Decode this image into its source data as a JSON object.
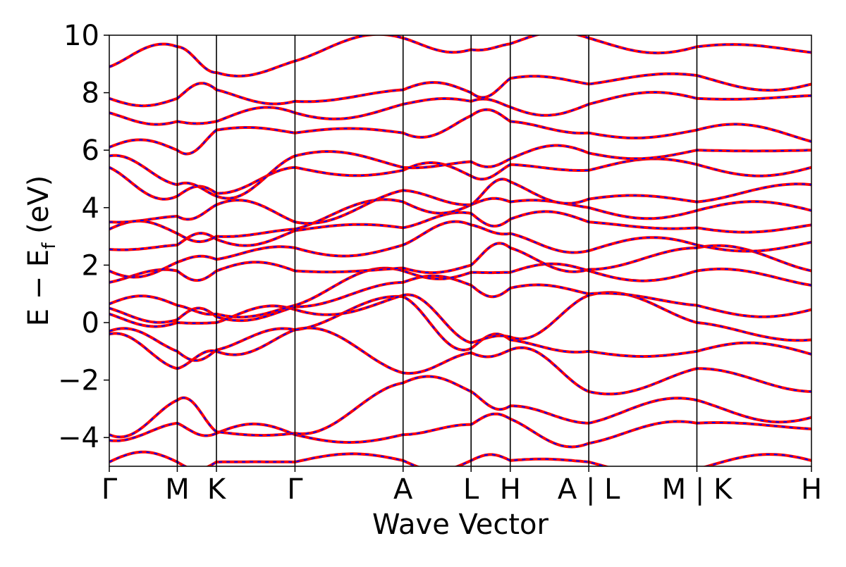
{
  "chart_data": {
    "type": "line",
    "title": "",
    "xlabel": "Wave Vector",
    "ylabel_main": "E − E",
    "ylabel_sub": "f",
    "ylabel_unit": " (eV)",
    "ylim": [
      -5,
      10
    ],
    "yticks": [
      -4,
      -2,
      0,
      2,
      4,
      6,
      8,
      10
    ],
    "ytick_labels": [
      "−4",
      "−2",
      "0",
      "2",
      "4",
      "6",
      "8",
      "10"
    ],
    "xlim": [
      0,
      3.8
    ],
    "kpoints": [
      {
        "x": 0.0,
        "label": "Γ"
      },
      {
        "x": 0.368,
        "label": "M"
      },
      {
        "x": 0.58,
        "label": "K"
      },
      {
        "x": 1.005,
        "label": "Γ"
      },
      {
        "x": 1.59,
        "label": "A"
      },
      {
        "x": 1.958,
        "label": "L"
      },
      {
        "x": 2.17,
        "label": "H"
      },
      {
        "x": 2.595,
        "label": "A | L"
      },
      {
        "x": 3.18,
        "label": "M | K"
      },
      {
        "x": 3.8,
        "label": "H"
      }
    ],
    "grid": false,
    "legend": "none",
    "series_style": [
      {
        "color": "#ff0000",
        "style": "solid"
      },
      {
        "color": "#0000ff",
        "style": "dashed"
      }
    ],
    "band_endpoints": [
      [
        -4.85,
        -4.85,
        -4.85,
        -4.85,
        -4.8,
        -4.8,
        -4.8,
        -4.85,
        -5.1,
        -4.8
      ],
      [
        -4.1,
        -3.5,
        -3.85,
        -3.9,
        -3.9,
        -3.55,
        -3.35,
        -4.2,
        -3.5,
        -3.7
      ],
      [
        -3.9,
        -2.7,
        -3.8,
        -3.85,
        -2.1,
        -2.4,
        -2.9,
        -3.5,
        -2.7,
        -3.3
      ],
      [
        -0.4,
        -1.6,
        -1.0,
        -0.25,
        -1.75,
        -1.05,
        -0.95,
        -2.4,
        -1.6,
        -2.4
      ],
      [
        -0.3,
        -1.0,
        -0.95,
        -0.25,
        0.9,
        -0.9,
        -0.6,
        -1.0,
        -1.0,
        -1.1
      ],
      [
        0.3,
        0.0,
        0.0,
        0.45,
        0.95,
        -0.7,
        -0.5,
        0.95,
        0.0,
        -0.6
      ],
      [
        0.5,
        0.1,
        0.2,
        0.55,
        1.4,
        1.3,
        1.2,
        1.0,
        0.6,
        0.45
      ],
      [
        0.65,
        0.6,
        0.3,
        0.6,
        1.8,
        1.75,
        1.75,
        1.8,
        1.8,
        1.3
      ],
      [
        1.4,
        1.8,
        1.8,
        1.8,
        1.9,
        2.0,
        2.6,
        1.85,
        2.6,
        1.8
      ],
      [
        1.8,
        2.1,
        2.2,
        2.6,
        2.7,
        3.4,
        3.1,
        2.5,
        2.7,
        2.8
      ],
      [
        2.55,
        2.7,
        2.9,
        3.2,
        3.3,
        3.8,
        3.6,
        3.5,
        3.3,
        3.4
      ],
      [
        3.25,
        3.1,
        3.0,
        3.25,
        4.2,
        4.1,
        4.2,
        4.0,
        3.9,
        3.9
      ],
      [
        3.5,
        3.7,
        4.1,
        3.5,
        4.6,
        4.1,
        4.9,
        4.3,
        4.2,
        4.8
      ],
      [
        5.4,
        4.4,
        4.5,
        5.4,
        5.3,
        5.1,
        5.5,
        5.3,
        5.5,
        5.4
      ],
      [
        5.8,
        4.8,
        4.4,
        5.8,
        5.4,
        5.6,
        5.7,
        5.9,
        6.0,
        6.0
      ],
      [
        6.1,
        6.0,
        6.7,
        6.6,
        6.6,
        7.2,
        7.0,
        6.6,
        6.7,
        6.3
      ],
      [
        7.3,
        7.0,
        7.0,
        7.3,
        7.6,
        7.7,
        7.5,
        7.6,
        7.8,
        7.9
      ],
      [
        7.8,
        7.8,
        8.1,
        7.7,
        8.1,
        8.0,
        8.5,
        8.3,
        8.6,
        8.3
      ],
      [
        8.9,
        9.6,
        8.7,
        9.1,
        9.9,
        9.5,
        9.7,
        9.9,
        9.6,
        9.4
      ]
    ]
  }
}
